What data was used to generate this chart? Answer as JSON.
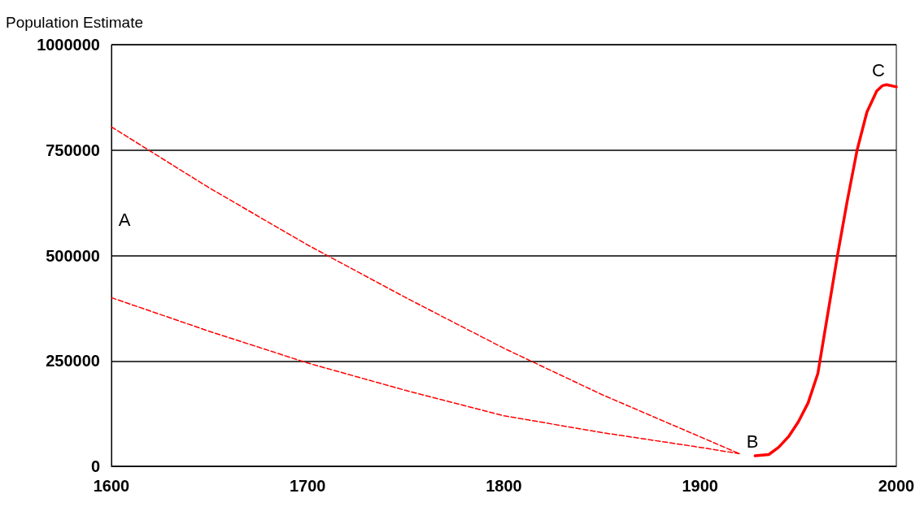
{
  "chart_data": {
    "type": "line",
    "ylabel": "Population Estimate",
    "xlim": [
      1600,
      2000
    ],
    "xticks": [
      1600,
      1700,
      1800,
      1900,
      2000
    ],
    "ylim": [
      0,
      1000000
    ],
    "yticks": [
      0,
      250000,
      500000,
      750000,
      1000000
    ],
    "grid": "y",
    "marker": "none",
    "series": [
      {
        "color": "#ff0000",
        "line_style": "dashed",
        "x": [
          1600,
          1650,
          1700,
          1750,
          1800,
          1850,
          1900,
          1920
        ],
        "values": [
          805000,
          660000,
          525000,
          400000,
          280000,
          170000,
          70000,
          30000
        ]
      },
      {
        "color": "#ff0000",
        "line_style": "dashed",
        "x": [
          1600,
          1650,
          1700,
          1750,
          1800,
          1850,
          1900,
          1920
        ],
        "values": [
          400000,
          320000,
          245000,
          180000,
          120000,
          80000,
          45000,
          30000
        ]
      },
      {
        "color": "#ff0000",
        "line_style": "solid",
        "x": [
          1928,
          1935,
          1940,
          1945,
          1950,
          1955,
          1960,
          1965,
          1970,
          1975,
          1980,
          1985,
          1990,
          1993,
          1995,
          2000
        ],
        "values": [
          25000,
          28000,
          45000,
          70000,
          105000,
          150000,
          220000,
          360000,
          500000,
          630000,
          750000,
          840000,
          890000,
          903000,
          905000,
          900000
        ]
      }
    ],
    "annotations": [
      "A",
      "B",
      "C"
    ]
  }
}
